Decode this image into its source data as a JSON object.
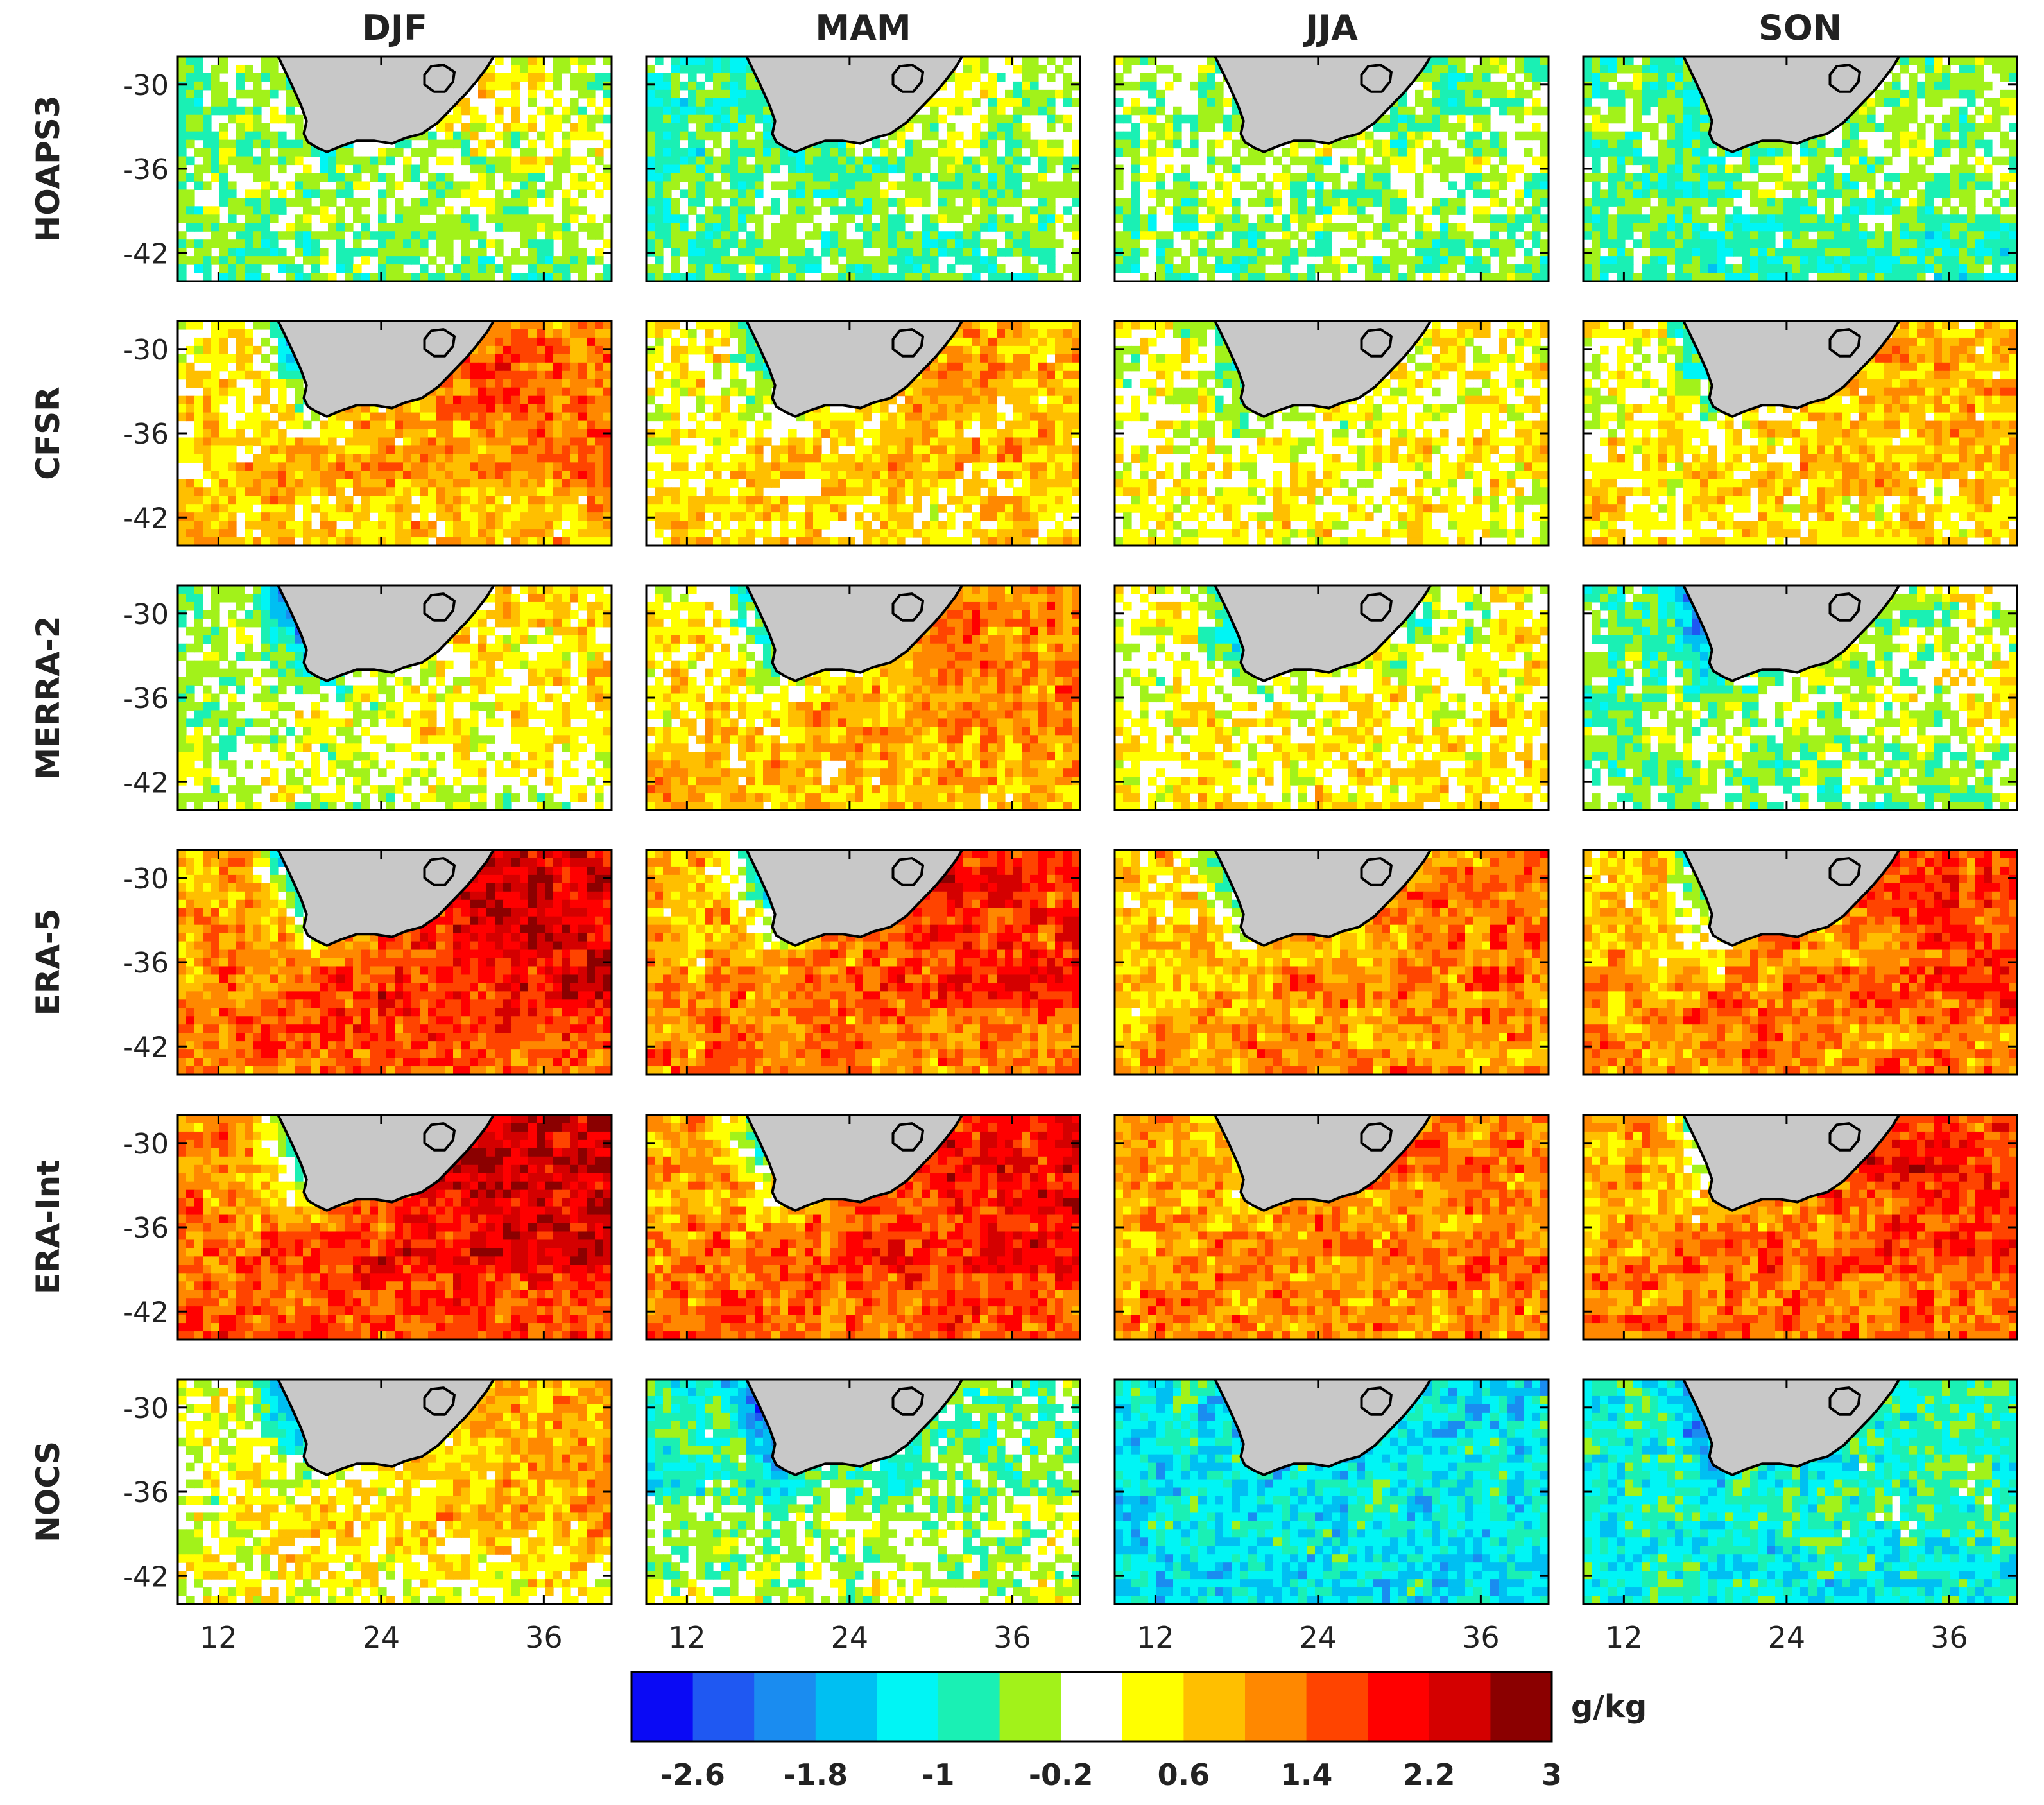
{
  "chart_data": {
    "type": "heatmap",
    "title": "",
    "colorbar_unit": "g/kg",
    "seasons": [
      "DJF",
      "MAM",
      "JJA",
      "SON"
    ],
    "datasets": [
      "HOAPS3",
      "CFSR",
      "MERRA-2",
      "ERA-5",
      "ERA-Int",
      "NOCS"
    ],
    "xlabel": "",
    "ylabel": "",
    "xlim": [
      9,
      41
    ],
    "ylim": [
      -44,
      -28
    ],
    "x_ticks": [
      12,
      24,
      36
    ],
    "x_tick_labels": [
      "12",
      "24",
      "36"
    ],
    "y_ticks": [
      -30,
      -36,
      -42
    ],
    "y_tick_labels": [
      "-30",
      "-36",
      "-42"
    ],
    "colorbar_boundaries": [
      -3.0,
      -2.6,
      -2.2,
      -1.8,
      -1.4,
      -1.0,
      -0.6,
      -0.2,
      0.2,
      0.6,
      1.0,
      1.4,
      1.8,
      2.2,
      2.6,
      3.0
    ],
    "colorbar_tick_values": [
      -2.6,
      -1.8,
      -1.0,
      -0.2,
      0.6,
      1.4,
      2.2,
      3.0
    ],
    "colorbar_tick_labels": [
      "-2.6",
      "-1.8",
      "-1",
      "-0.2",
      "0.6",
      "1.4",
      "2.2",
      "3"
    ],
    "colorbar_colors": [
      "#0a0af5",
      "#1f58f2",
      "#1a8cf0",
      "#00bff2",
      "#00f5f5",
      "#1af0b4",
      "#a2f21a",
      "#ffffff",
      "#ffff00",
      "#ffbf00",
      "#ff8800",
      "#ff4400",
      "#ff0000",
      "#d40000",
      "#8b0000"
    ],
    "land_color": "#c8c8c8",
    "panels": [
      {
        "dataset": "HOAPS3",
        "season": "DJF",
        "coastal_west": -0.6,
        "coastal_east": 0.5,
        "offshore_mean": -0.3,
        "southern_mean": -0.5
      },
      {
        "dataset": "HOAPS3",
        "season": "MAM",
        "coastal_west": -1.0,
        "coastal_east": 0.3,
        "offshore_mean": -0.6,
        "southern_mean": -0.7
      },
      {
        "dataset": "HOAPS3",
        "season": "JJA",
        "coastal_west": -0.6,
        "coastal_east": -0.6,
        "offshore_mean": -0.2,
        "southern_mean": -0.5
      },
      {
        "dataset": "HOAPS3",
        "season": "SON",
        "coastal_west": -1.0,
        "coastal_east": -0.4,
        "offshore_mean": -0.5,
        "southern_mean": -0.8
      },
      {
        "dataset": "CFSR",
        "season": "DJF",
        "coastal_west": -1.1,
        "coastal_east": 1.7,
        "offshore_mean": 1.1,
        "southern_mean": 0.9
      },
      {
        "dataset": "CFSR",
        "season": "MAM",
        "coastal_west": -0.9,
        "coastal_east": 1.3,
        "offshore_mean": 0.6,
        "southern_mean": 0.7
      },
      {
        "dataset": "CFSR",
        "season": "JJA",
        "coastal_west": -0.7,
        "coastal_east": 0.2,
        "offshore_mean": 0.2,
        "southern_mean": 0.3
      },
      {
        "dataset": "CFSR",
        "season": "SON",
        "coastal_west": -1.0,
        "coastal_east": 1.1,
        "offshore_mean": 0.6,
        "southern_mean": 0.6
      },
      {
        "dataset": "MERRA-2",
        "season": "DJF",
        "coastal_west": -2.2,
        "coastal_east": 0.6,
        "offshore_mean": 0.1,
        "southern_mean": -0.1
      },
      {
        "dataset": "MERRA-2",
        "season": "MAM",
        "coastal_west": -1.2,
        "coastal_east": 1.4,
        "offshore_mean": 0.9,
        "southern_mean": 1.0
      },
      {
        "dataset": "MERRA-2",
        "season": "JJA",
        "coastal_west": -1.4,
        "coastal_east": -0.6,
        "offshore_mean": 0.3,
        "southern_mean": 0.5
      },
      {
        "dataset": "MERRA-2",
        "season": "SON",
        "coastal_west": -2.2,
        "coastal_east": -0.3,
        "offshore_mean": -0.3,
        "southern_mean": -0.4
      },
      {
        "dataset": "ERA-5",
        "season": "DJF",
        "coastal_west": -1.3,
        "coastal_east": 2.5,
        "offshore_mean": 2.0,
        "southern_mean": 1.8
      },
      {
        "dataset": "ERA-5",
        "season": "MAM",
        "coastal_west": -1.1,
        "coastal_east": 2.1,
        "offshore_mean": 1.6,
        "southern_mean": 1.6
      },
      {
        "dataset": "ERA-5",
        "season": "JJA",
        "coastal_west": -0.8,
        "coastal_east": 1.3,
        "offshore_mean": 1.2,
        "southern_mean": 1.3
      },
      {
        "dataset": "ERA-5",
        "season": "SON",
        "coastal_west": -0.9,
        "coastal_east": 1.9,
        "offshore_mean": 1.4,
        "southern_mean": 1.5
      },
      {
        "dataset": "ERA-Int",
        "season": "DJF",
        "coastal_west": -1.1,
        "coastal_east": 2.8,
        "offshore_mean": 2.1,
        "southern_mean": 2.0
      },
      {
        "dataset": "ERA-Int",
        "season": "MAM",
        "coastal_west": -0.7,
        "coastal_east": 2.1,
        "offshore_mean": 1.8,
        "southern_mean": 1.8
      },
      {
        "dataset": "ERA-Int",
        "season": "JJA",
        "coastal_west": 0.6,
        "coastal_east": 1.5,
        "offshore_mean": 1.4,
        "southern_mean": 1.5
      },
      {
        "dataset": "ERA-Int",
        "season": "SON",
        "coastal_west": -0.3,
        "coastal_east": 2.2,
        "offshore_mean": 1.6,
        "southern_mean": 1.7
      },
      {
        "dataset": "NOCS",
        "season": "DJF",
        "coastal_west": -2.0,
        "coastal_east": 0.9,
        "offshore_mean": 0.6,
        "southern_mean": 0.3
      },
      {
        "dataset": "NOCS",
        "season": "MAM",
        "coastal_west": -2.0,
        "coastal_east": -0.6,
        "offshore_mean": -0.8,
        "southern_mean": -0.2
      },
      {
        "dataset": "NOCS",
        "season": "JJA",
        "coastal_west": -1.3,
        "coastal_east": -1.3,
        "offshore_mean": -1.5,
        "southern_mean": -1.6
      },
      {
        "dataset": "NOCS",
        "season": "SON",
        "coastal_west": -2.0,
        "coastal_east": -1.0,
        "offshore_mean": -1.1,
        "southern_mean": -1.3
      }
    ]
  }
}
